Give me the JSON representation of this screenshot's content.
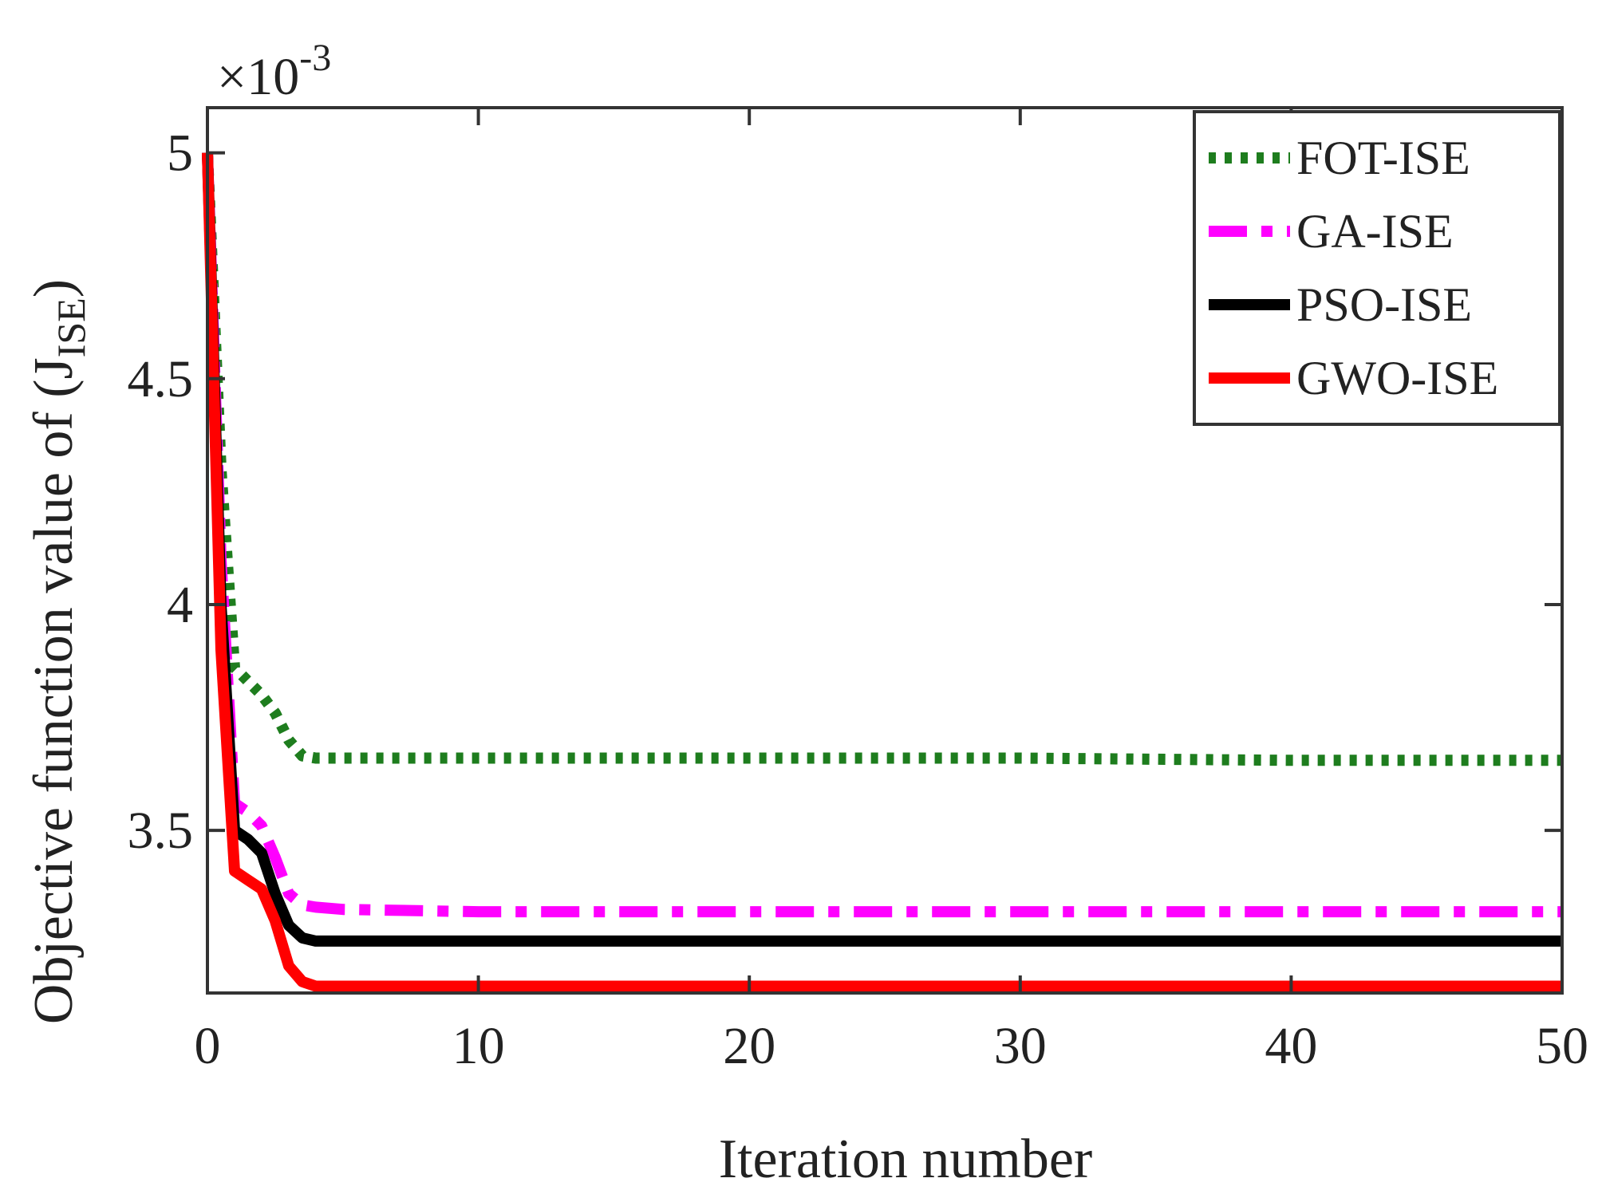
{
  "chart_data": {
    "type": "line",
    "xlabel": "Iteration number",
    "ylabel": "Objective function value of (J",
    "ylabel_subscript": "ISE",
    "ylabel_close": ")",
    "y_exponent_label": "×10",
    "y_exponent_power": "-3",
    "xlim": [
      0,
      50
    ],
    "ylim": [
      3.14,
      5.1
    ],
    "xticks": [
      0,
      10,
      20,
      30,
      40,
      50
    ],
    "yticks": [
      3.5,
      4,
      4.5,
      5
    ],
    "xtick_labels": [
      "0",
      "10",
      "20",
      "30",
      "40",
      "50"
    ],
    "ytick_labels": [
      "3.5",
      "4",
      "4.5",
      "5"
    ],
    "legend_position": "top-right",
    "grid": false,
    "series": [
      {
        "name": "FOT-ISE",
        "color": "#1e7d1e",
        "style": "dotted",
        "x": [
          0,
          0.5,
          1,
          1.5,
          2,
          2.5,
          3,
          3.5,
          4,
          5,
          10,
          20,
          30,
          40,
          50
        ],
        "y": [
          5.0,
          4.3,
          3.86,
          3.83,
          3.8,
          3.76,
          3.7,
          3.665,
          3.66,
          3.66,
          3.66,
          3.66,
          3.66,
          3.655,
          3.655
        ]
      },
      {
        "name": "GA-ISE",
        "color": "#ff00ff",
        "style": "dashdot",
        "x": [
          0,
          0.5,
          1,
          1.5,
          2,
          2.5,
          3,
          3.5,
          4,
          5,
          10,
          20,
          30,
          40,
          50
        ],
        "y": [
          5.0,
          4.1,
          3.56,
          3.54,
          3.51,
          3.44,
          3.36,
          3.335,
          3.33,
          3.325,
          3.32,
          3.32,
          3.32,
          3.32,
          3.32
        ]
      },
      {
        "name": "PSO-ISE",
        "color": "#000000",
        "style": "solid",
        "x": [
          0,
          0.5,
          1,
          1.5,
          2,
          2.5,
          3,
          3.5,
          4,
          5,
          10,
          20,
          30,
          40,
          50
        ],
        "y": [
          5.0,
          4.0,
          3.5,
          3.48,
          3.45,
          3.36,
          3.29,
          3.262,
          3.255,
          3.255,
          3.255,
          3.255,
          3.255,
          3.255,
          3.255
        ]
      },
      {
        "name": "GWO-ISE",
        "color": "#ff0000",
        "style": "solid",
        "x": [
          0,
          0.5,
          1,
          1.5,
          2,
          2.5,
          3,
          3.5,
          4,
          5,
          10,
          20,
          30,
          40,
          50
        ],
        "y": [
          5.0,
          3.9,
          3.41,
          3.39,
          3.37,
          3.3,
          3.2,
          3.165,
          3.155,
          3.155,
          3.155,
          3.155,
          3.155,
          3.155,
          3.155
        ]
      }
    ]
  }
}
